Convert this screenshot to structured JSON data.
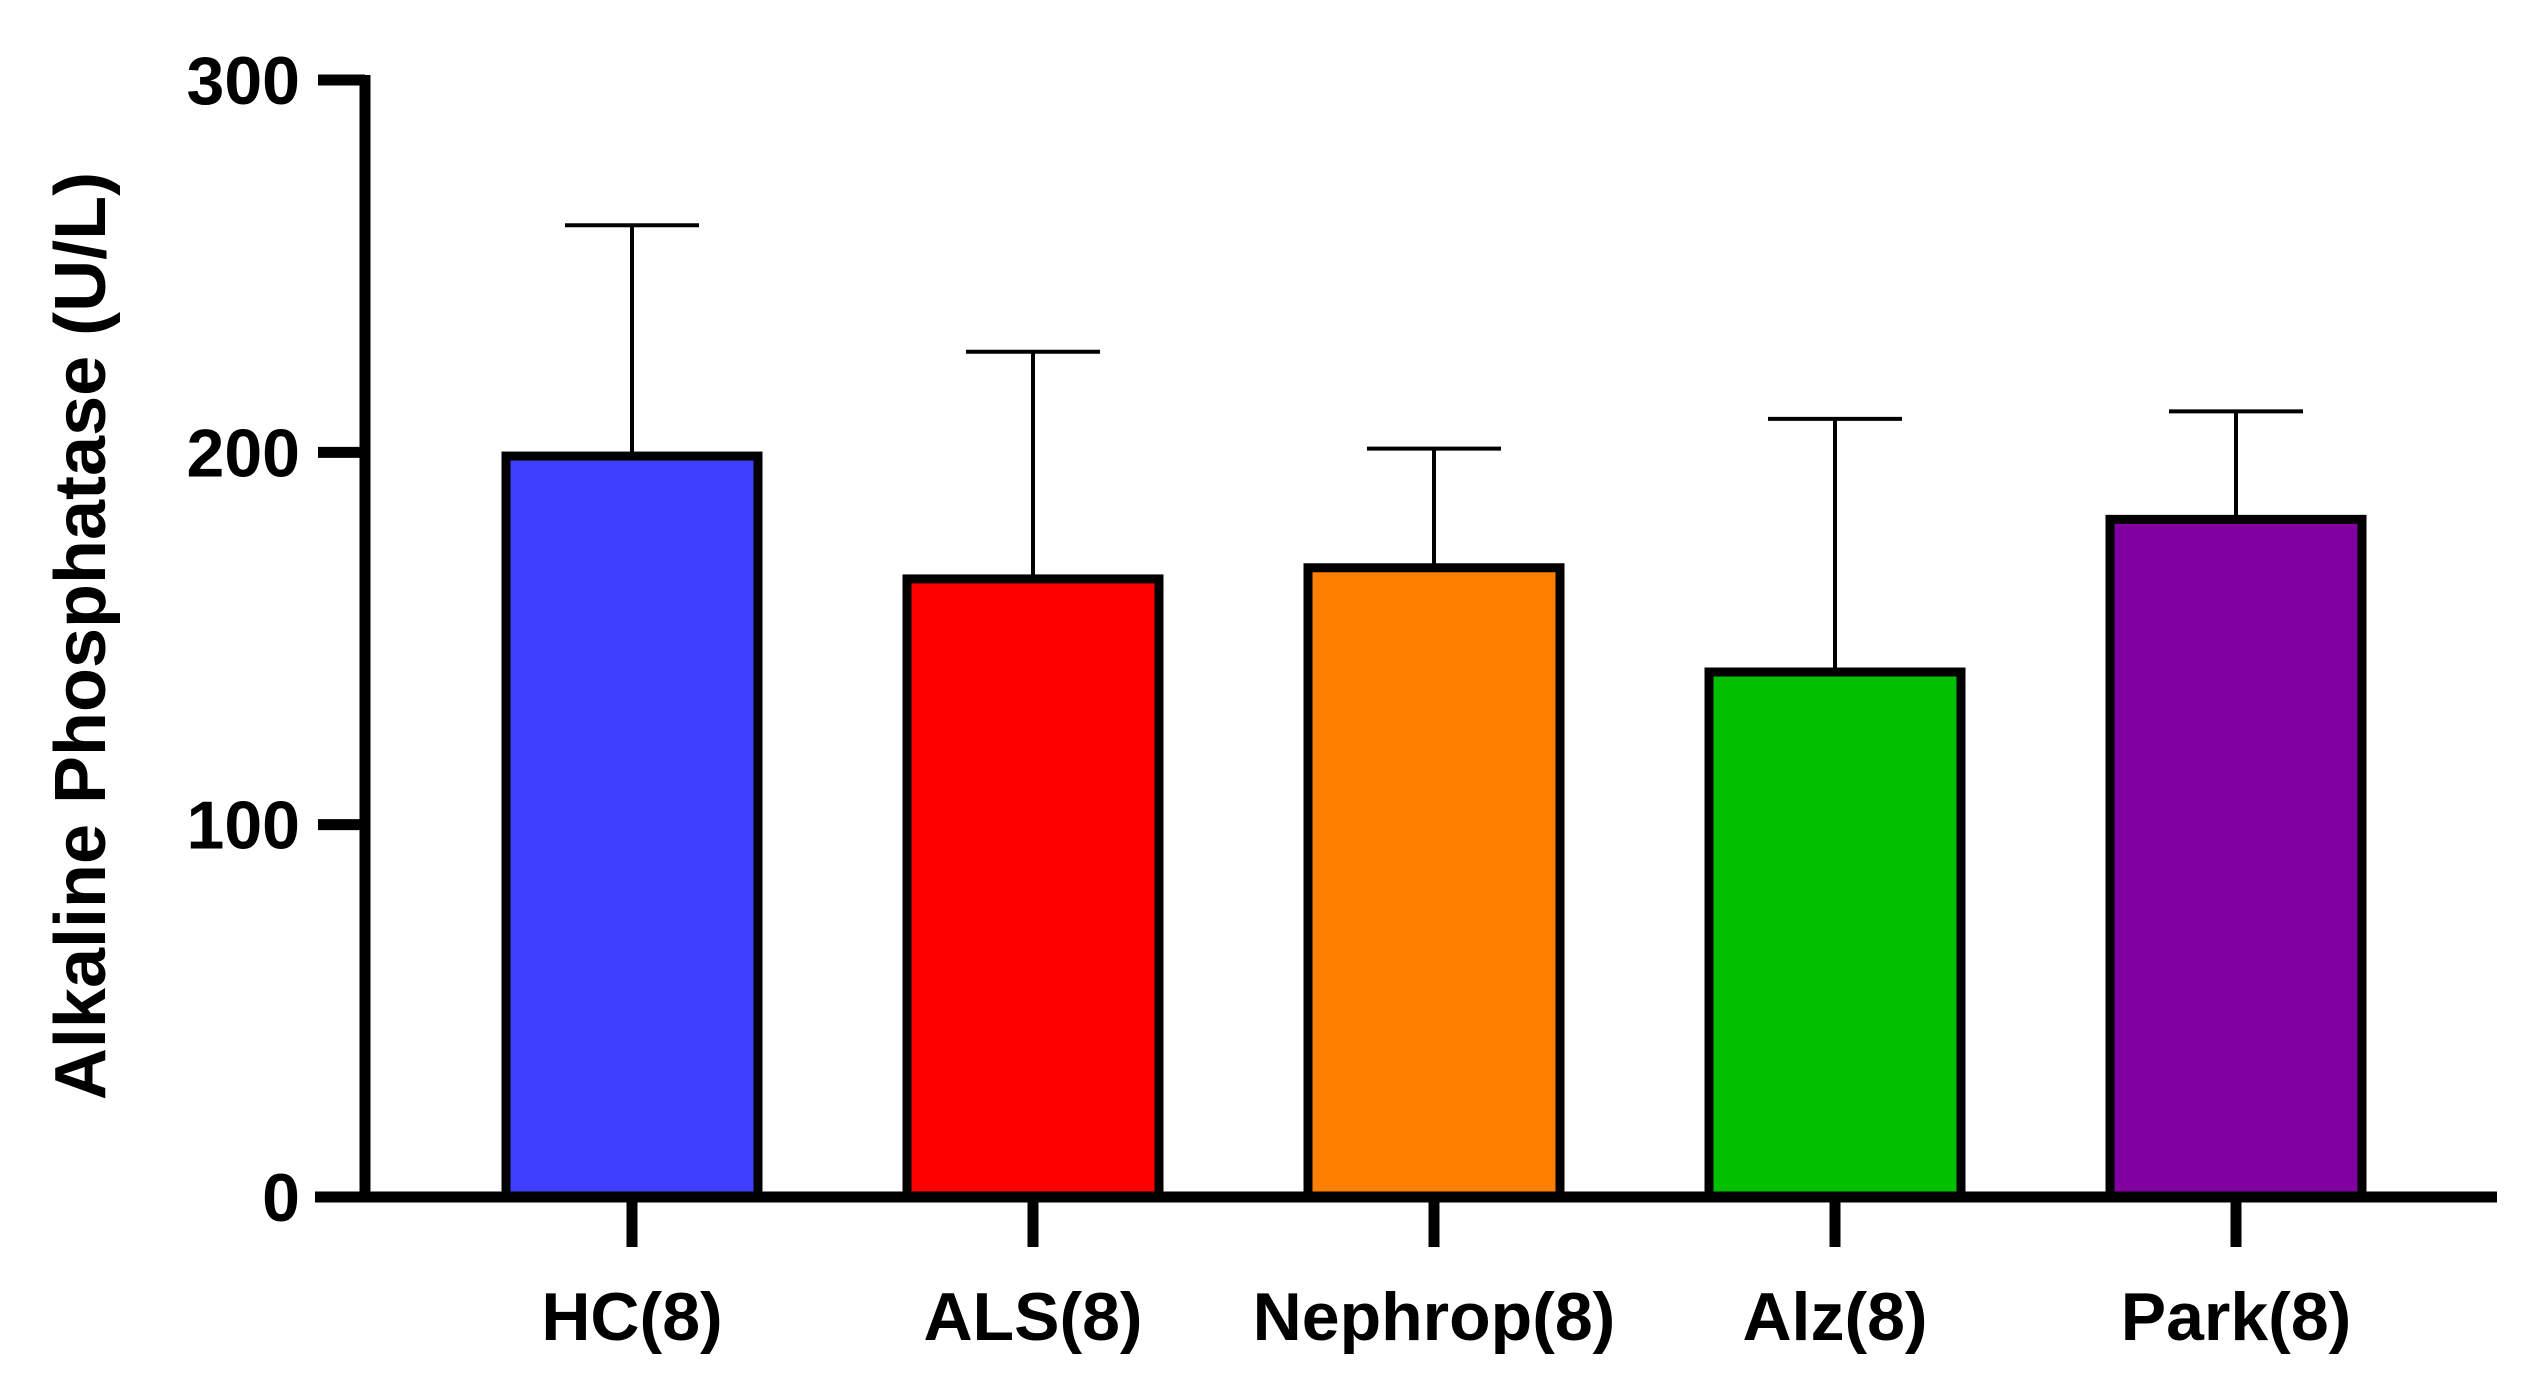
{
  "chart_data": {
    "type": "bar",
    "title": "",
    "xlabel": "",
    "ylabel": "Alkaline Phosphatase (U/L)",
    "ylim": [
      0,
      300
    ],
    "yticks": [
      0,
      100,
      200,
      300
    ],
    "ytick_labels": [
      "0",
      "100",
      "200",
      "300"
    ],
    "categories": [
      "HC(8)",
      "ALS(8)",
      "Nephrop(8)",
      "Alz(8)",
      "Park(8)"
    ],
    "values": [
      199,
      166,
      169,
      141,
      182
    ],
    "error_upper": [
      261,
      227,
      201,
      209,
      211
    ],
    "colors": [
      "#3f3fff",
      "#ff0000",
      "#ff8000",
      "#00c000",
      "#8000a0"
    ],
    "grid": false,
    "legend": "none"
  }
}
